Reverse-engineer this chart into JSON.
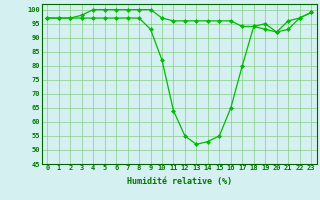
{
  "line1": [
    97,
    97,
    97,
    98,
    100,
    100,
    100,
    100,
    100,
    100,
    97,
    96,
    96,
    96,
    96,
    96,
    96,
    94,
    94,
    95,
    92,
    93,
    97,
    99
  ],
  "line2": [
    97,
    97,
    97,
    97,
    97,
    97,
    97,
    97,
    97,
    93,
    82,
    64,
    55,
    52,
    53,
    55,
    65,
    80,
    94,
    93,
    92,
    96,
    97,
    99
  ],
  "x": [
    0,
    1,
    2,
    3,
    4,
    5,
    6,
    7,
    8,
    9,
    10,
    11,
    12,
    13,
    14,
    15,
    16,
    17,
    18,
    19,
    20,
    21,
    22,
    23
  ],
  "xlabel": "Humidité relative (%)",
  "ylim": [
    45,
    102
  ],
  "yticks": [
    45,
    50,
    55,
    60,
    65,
    70,
    75,
    80,
    85,
    90,
    95,
    100
  ],
  "xticks": [
    0,
    1,
    2,
    3,
    4,
    5,
    6,
    7,
    8,
    9,
    10,
    11,
    12,
    13,
    14,
    15,
    16,
    17,
    18,
    19,
    20,
    21,
    22,
    23
  ],
  "line_color": "#00bb00",
  "marker": "D",
  "markersize": 2.0,
  "linewidth": 0.9,
  "bg_color": "#d4f0f0",
  "grid_color": "#88cc88",
  "text_color": "#007700",
  "axis_color": "#006600",
  "xlabel_fontsize": 6.0,
  "tick_fontsize": 5.0
}
